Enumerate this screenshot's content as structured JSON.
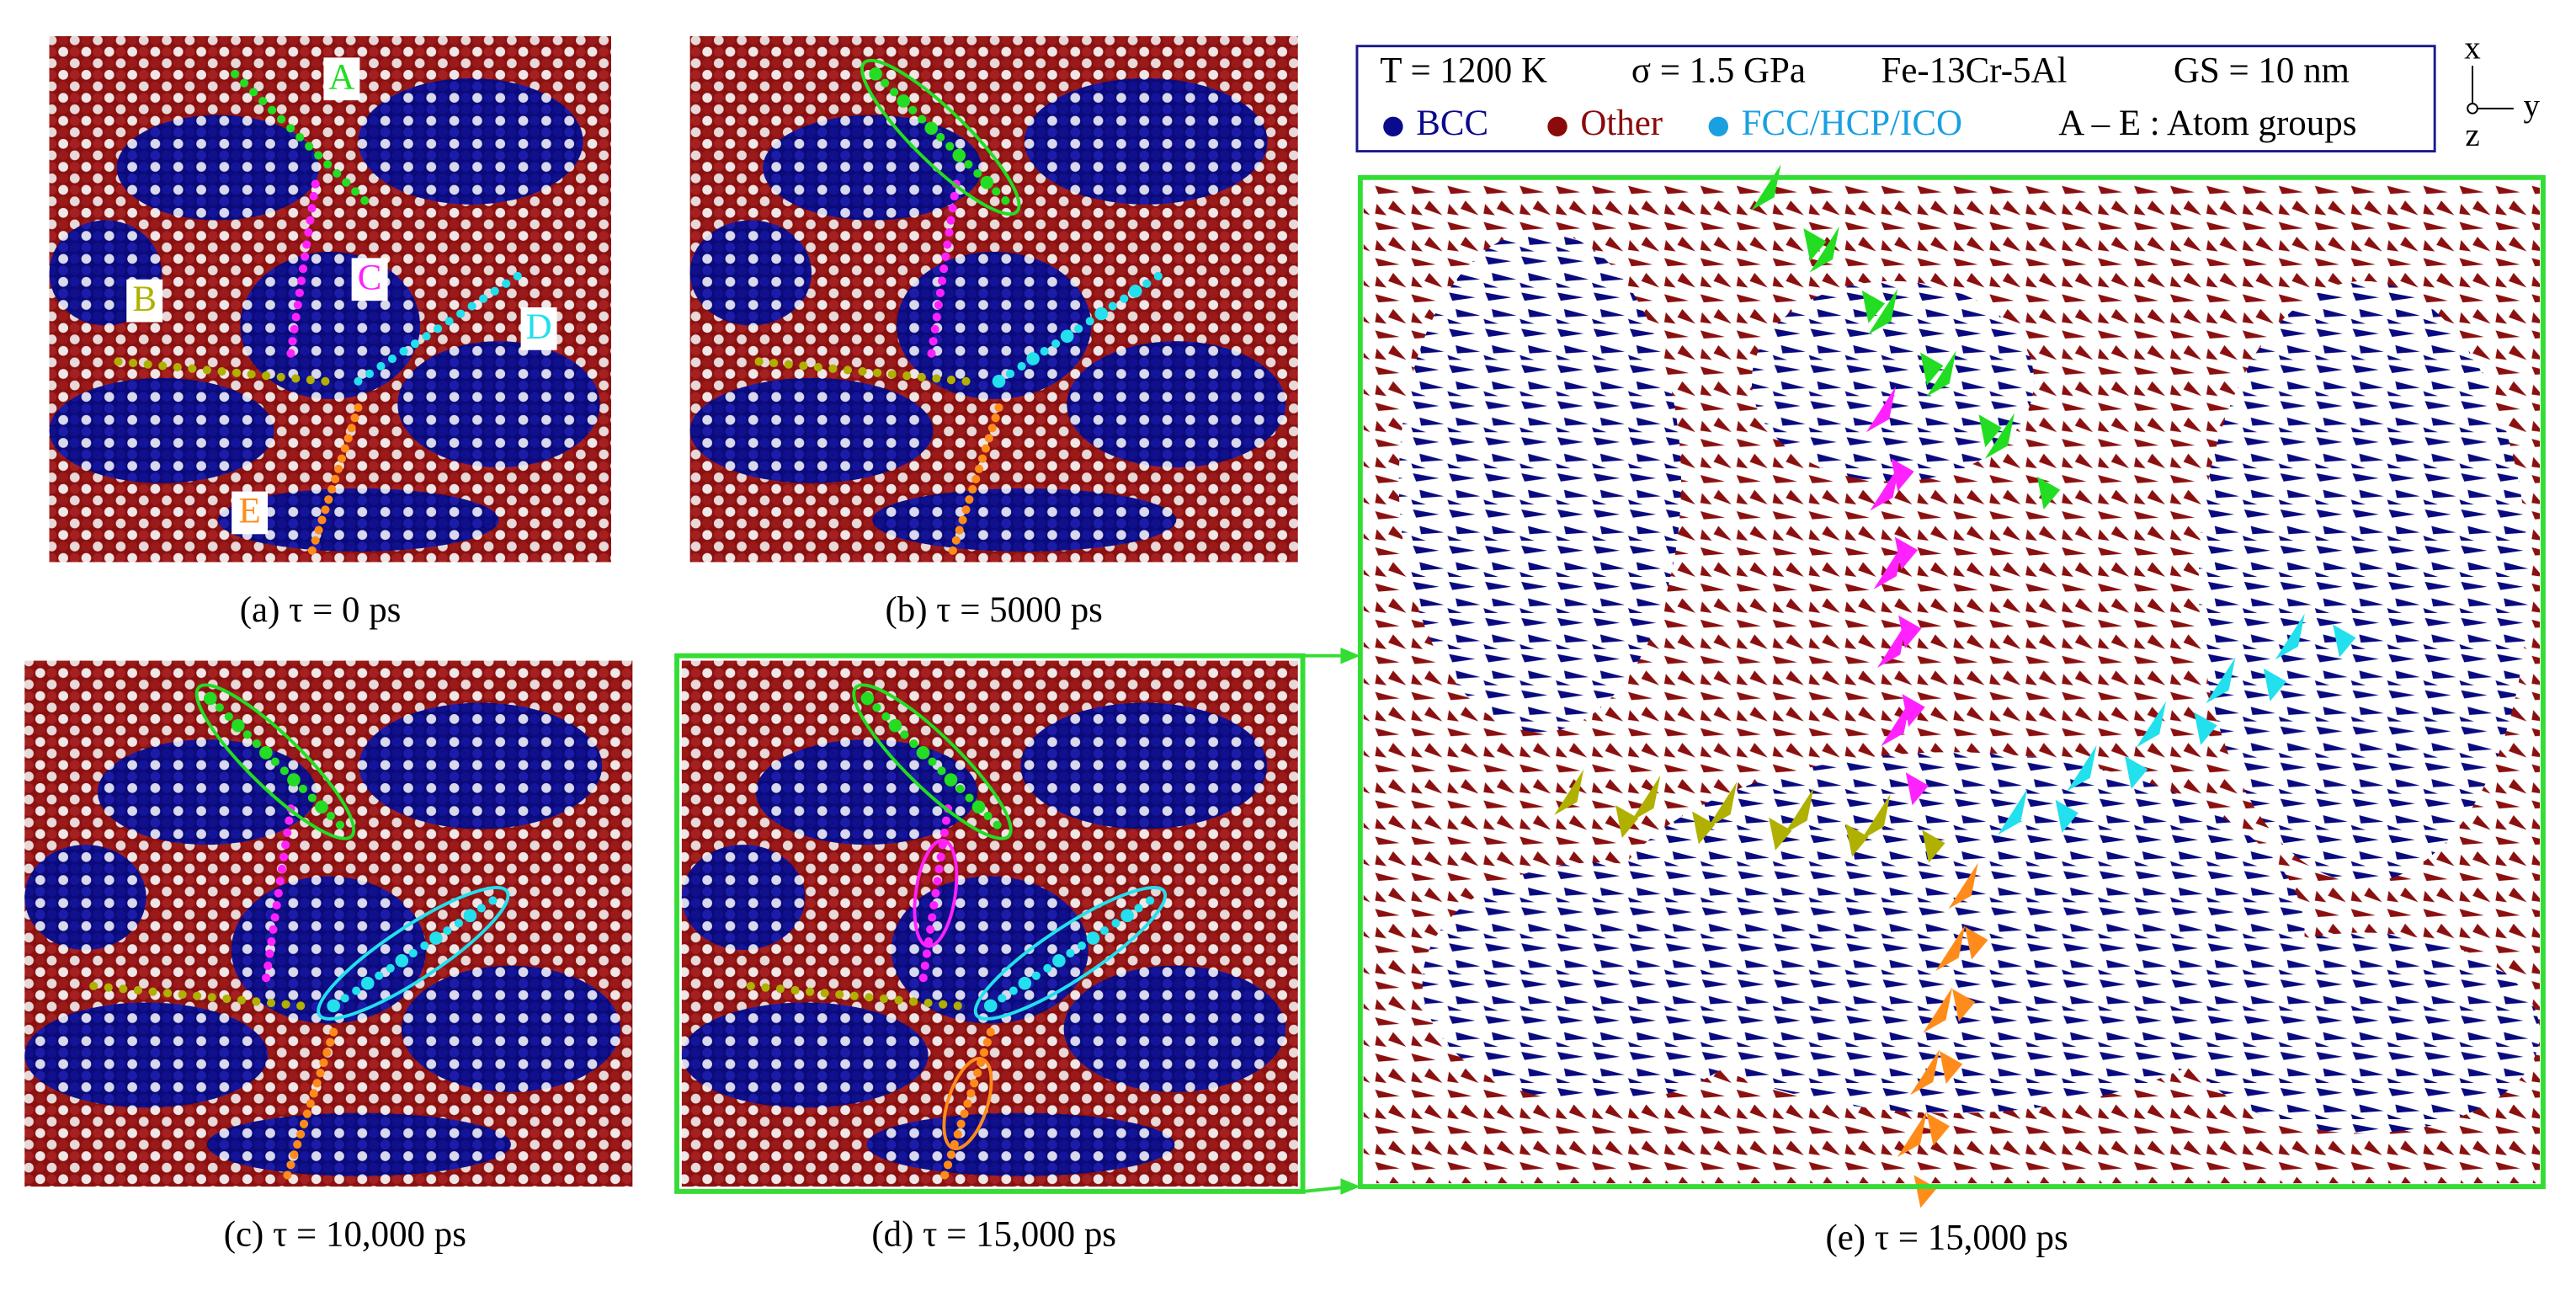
{
  "legend": {
    "conditions": [
      "T  =  1200 K",
      "σ = 1.5 GPa",
      "Fe-13Cr-5Al",
      "GS  = 10 nm"
    ],
    "items": [
      {
        "label": "BCC",
        "color": "#0a0a8c"
      },
      {
        "label": "Other",
        "color": "#8b0a0a"
      },
      {
        "label": "FCC/HCP/ICO",
        "color": "#1aa0e0"
      }
    ],
    "note": "A – E : Atom groups"
  },
  "axes": {
    "x": "x",
    "y": "y",
    "z": "z"
  },
  "group_labels": [
    "A",
    "B",
    "C",
    "D",
    "E"
  ],
  "captions": [
    "(a)  τ  =  0 ps",
    "(b) τ  =  5000 ps",
    "(c) τ  =  10,000 ps",
    "(d) τ  =  15,000 ps",
    "(e) τ  =  15,000 ps"
  ]
}
